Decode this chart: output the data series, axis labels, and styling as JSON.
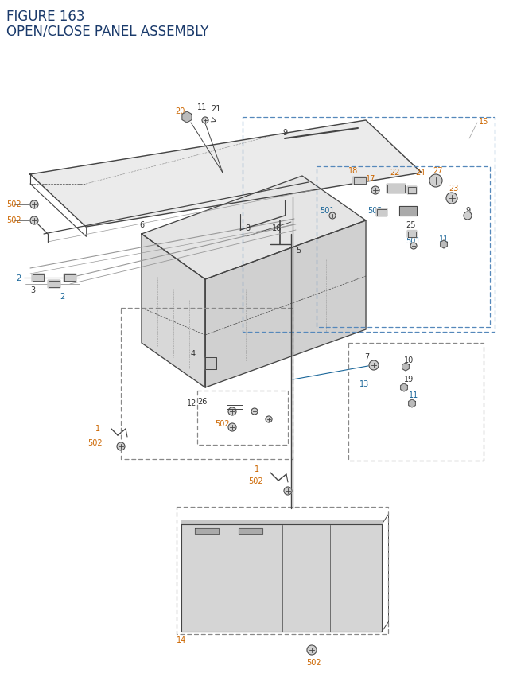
{
  "title_line1": "FIGURE 163",
  "title_line2": "OPEN/CLOSE PANEL ASSEMBLY",
  "title_color": "#1a3a6b",
  "title_fontsize": 12,
  "bg_color": "#ffffff",
  "label_color_orange": "#cc6600",
  "label_color_blue": "#1a6699",
  "label_color_black": "#333333",
  "label_fontsize": 7.0
}
